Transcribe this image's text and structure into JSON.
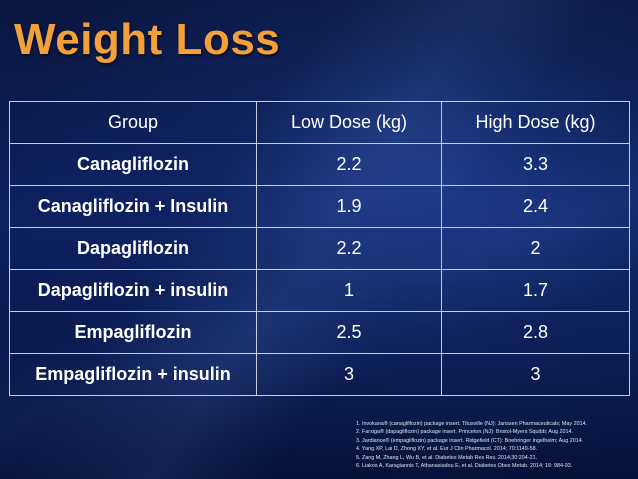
{
  "title": "Weight Loss",
  "table": {
    "headers": [
      "Group",
      "Low Dose (kg)",
      "High Dose (kg)"
    ],
    "rows": [
      {
        "group": "Canagliflozin",
        "low": "2.2",
        "high": "3.3"
      },
      {
        "group": "Canagliflozin + Insulin",
        "low": "1.9",
        "high": "2.4"
      },
      {
        "group": "Dapagliflozin",
        "low": "2.2",
        "high": "2"
      },
      {
        "group": "Dapagliflozin + insulin",
        "low": "1",
        "high": "1.7"
      },
      {
        "group": "Empagliflozin",
        "low": "2.5",
        "high": "2.8"
      },
      {
        "group": "Empagliflozin + insulin",
        "low": "3",
        "high": "3"
      }
    ]
  },
  "references": [
    "1. Invokana® (canagliflozin) package insert. Titusville (NJ): Janssen Pharmaceuticals; May 2014.",
    "2. Farxiga® (dapagliflozin) package insert. Princeton (NJ): Bristol-Myers Squibb; Aug 2014.",
    "3. Jardiance® (empagliflozin) package insert. Ridgefield (CT): Boehringer Ingelheim; Aug 2014.",
    "4. Yang XP, Lai D, Zhong XY, et al. Eur J Clin Pharmacol. 2014; 70:1149-58.",
    "5. Zang M, Zhang L, Wu B, et al. Diabetes Metab Res Rev. 2014;30:204-21.",
    "6. Liakos A, Karagiannis T, Athanasiadou E, et al. Diabetes Obes Metab. 2014; 16: 984-93."
  ],
  "colors": {
    "title": "#f2a03a",
    "text": "#ffffff",
    "border": "#c9cdd6",
    "background": "#0d2060"
  }
}
